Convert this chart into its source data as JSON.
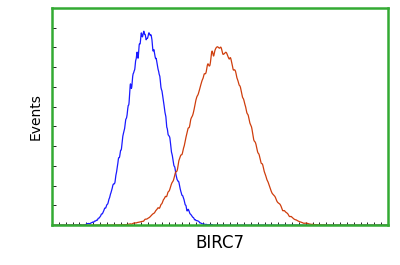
{
  "title": "",
  "xlabel": "BIRC7",
  "ylabel": "Events",
  "blue_mean": 0.28,
  "blue_std": 0.055,
  "red_mean": 0.5,
  "red_std": 0.085,
  "blue_color": "#1a1aff",
  "red_color": "#cc3300",
  "background_color": "#ffffff",
  "border_color": "#33aa33",
  "xlim": [
    0.0,
    1.0
  ],
  "ylim": [
    0.0,
    1.12
  ],
  "xlabel_fontsize": 12,
  "ylabel_fontsize": 10,
  "blue_noise_amp": 0.045,
  "red_noise_amp": 0.035,
  "noise_seed": 7
}
